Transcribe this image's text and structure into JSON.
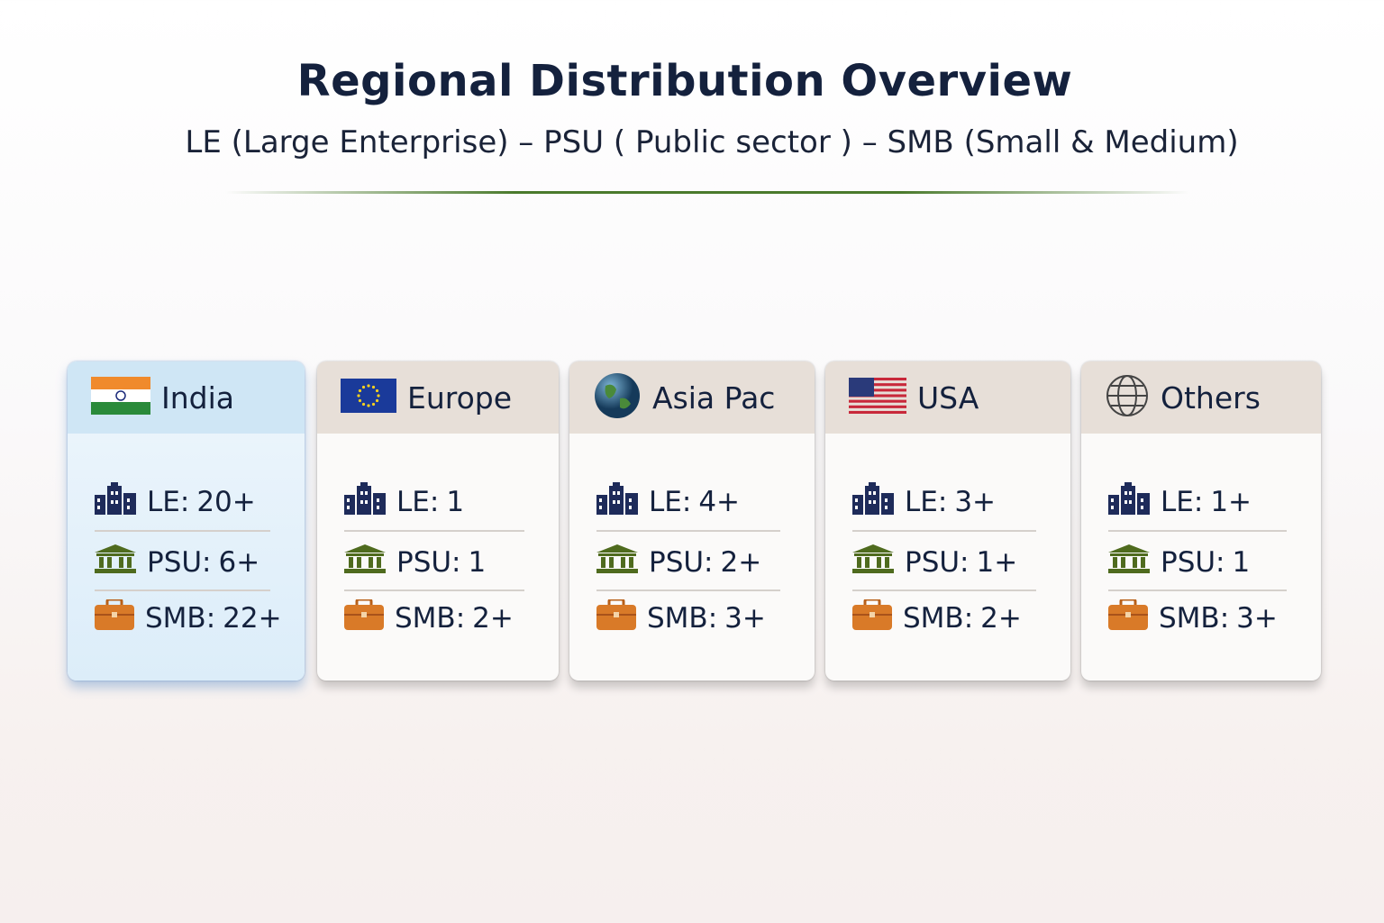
{
  "header": {
    "title": "Regional Distribution Overview",
    "subtitle": "LE (Large Enterprise) – PSU ( Public sector ) – SMB (Small & Medium)"
  },
  "regions": [
    {
      "name": "India",
      "rows": [
        {
          "label": "LE:",
          "value": "20+"
        },
        {
          "label": "PSU:",
          "value": "6+"
        },
        {
          "label": "SMB:",
          "value": "22+"
        }
      ]
    },
    {
      "name": "Europe",
      "rows": [
        {
          "label": "LE:",
          "value": "1"
        },
        {
          "label": "PSU:",
          "value": "1"
        },
        {
          "label": "SMB:",
          "value": "2+"
        }
      ]
    },
    {
      "name": "Asia Pac",
      "rows": [
        {
          "label": "LE:",
          "value": "4+"
        },
        {
          "label": "PSU:",
          "value": "2+"
        },
        {
          "label": "SMB:",
          "value": "3+"
        }
      ]
    },
    {
      "name": "USA",
      "rows": [
        {
          "label": "LE:",
          "value": "3+"
        },
        {
          "label": "PSU:",
          "value": "1+"
        },
        {
          "label": "SMB:",
          "value": "2+"
        }
      ]
    },
    {
      "name": "Others",
      "rows": [
        {
          "label": "LE:",
          "value": "1+"
        },
        {
          "label": "PSU:",
          "value": "1"
        },
        {
          "label": "SMB:",
          "value": "3+"
        }
      ]
    }
  ]
}
